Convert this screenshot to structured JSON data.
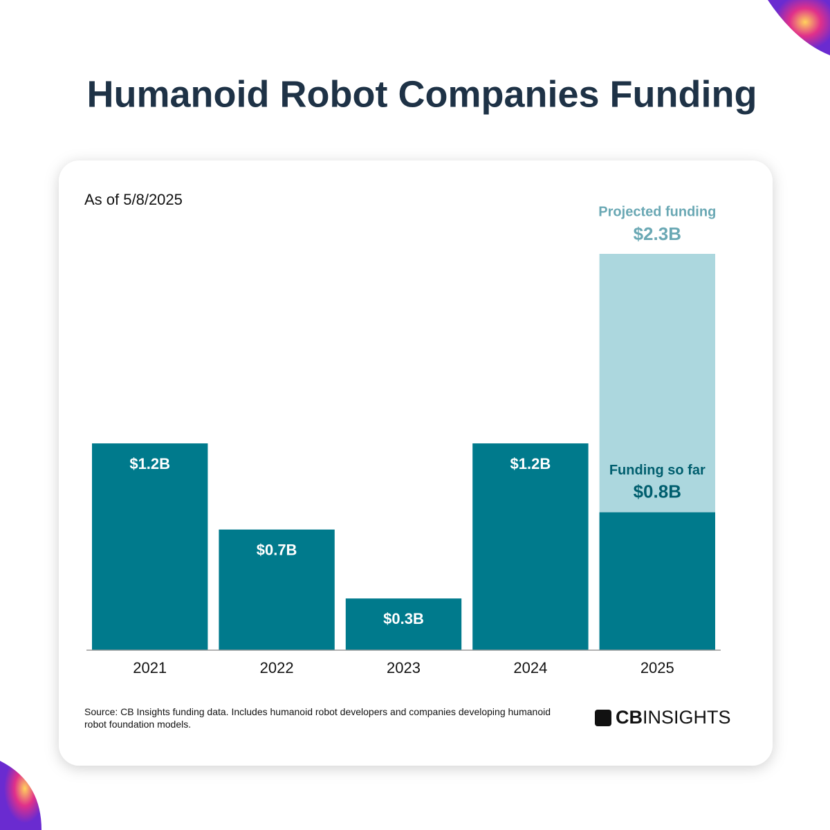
{
  "chart_data": {
    "type": "bar",
    "barmode": "overlay",
    "title": "Humanoid Robot Companies Funding",
    "subtitle": "As of 5/8/2025",
    "categories": [
      "2021",
      "2022",
      "2023",
      "2024",
      "2025"
    ],
    "series": [
      {
        "name": "Funding so far",
        "color": "#007a8c",
        "label_color": "#005e6e",
        "values": [
          1.2,
          0.7,
          0.3,
          1.2,
          0.8
        ],
        "value_labels": [
          "$1.2B",
          "$0.7B",
          "$0.3B",
          "$1.2B",
          "$0.8B"
        ]
      },
      {
        "name": "Projected funding",
        "color": "#acd7de",
        "label_color": "#6aa8b4",
        "values": [
          null,
          null,
          null,
          null,
          2.3
        ],
        "value_labels": [
          null,
          null,
          null,
          null,
          "$2.3B"
        ]
      }
    ],
    "source": "Source: CB Insights funding data. Includes humanoid robot developers and companies developing humanoid robot foundation models.",
    "logo": {
      "bold": "CB",
      "rest": "INSIGHTS"
    }
  }
}
